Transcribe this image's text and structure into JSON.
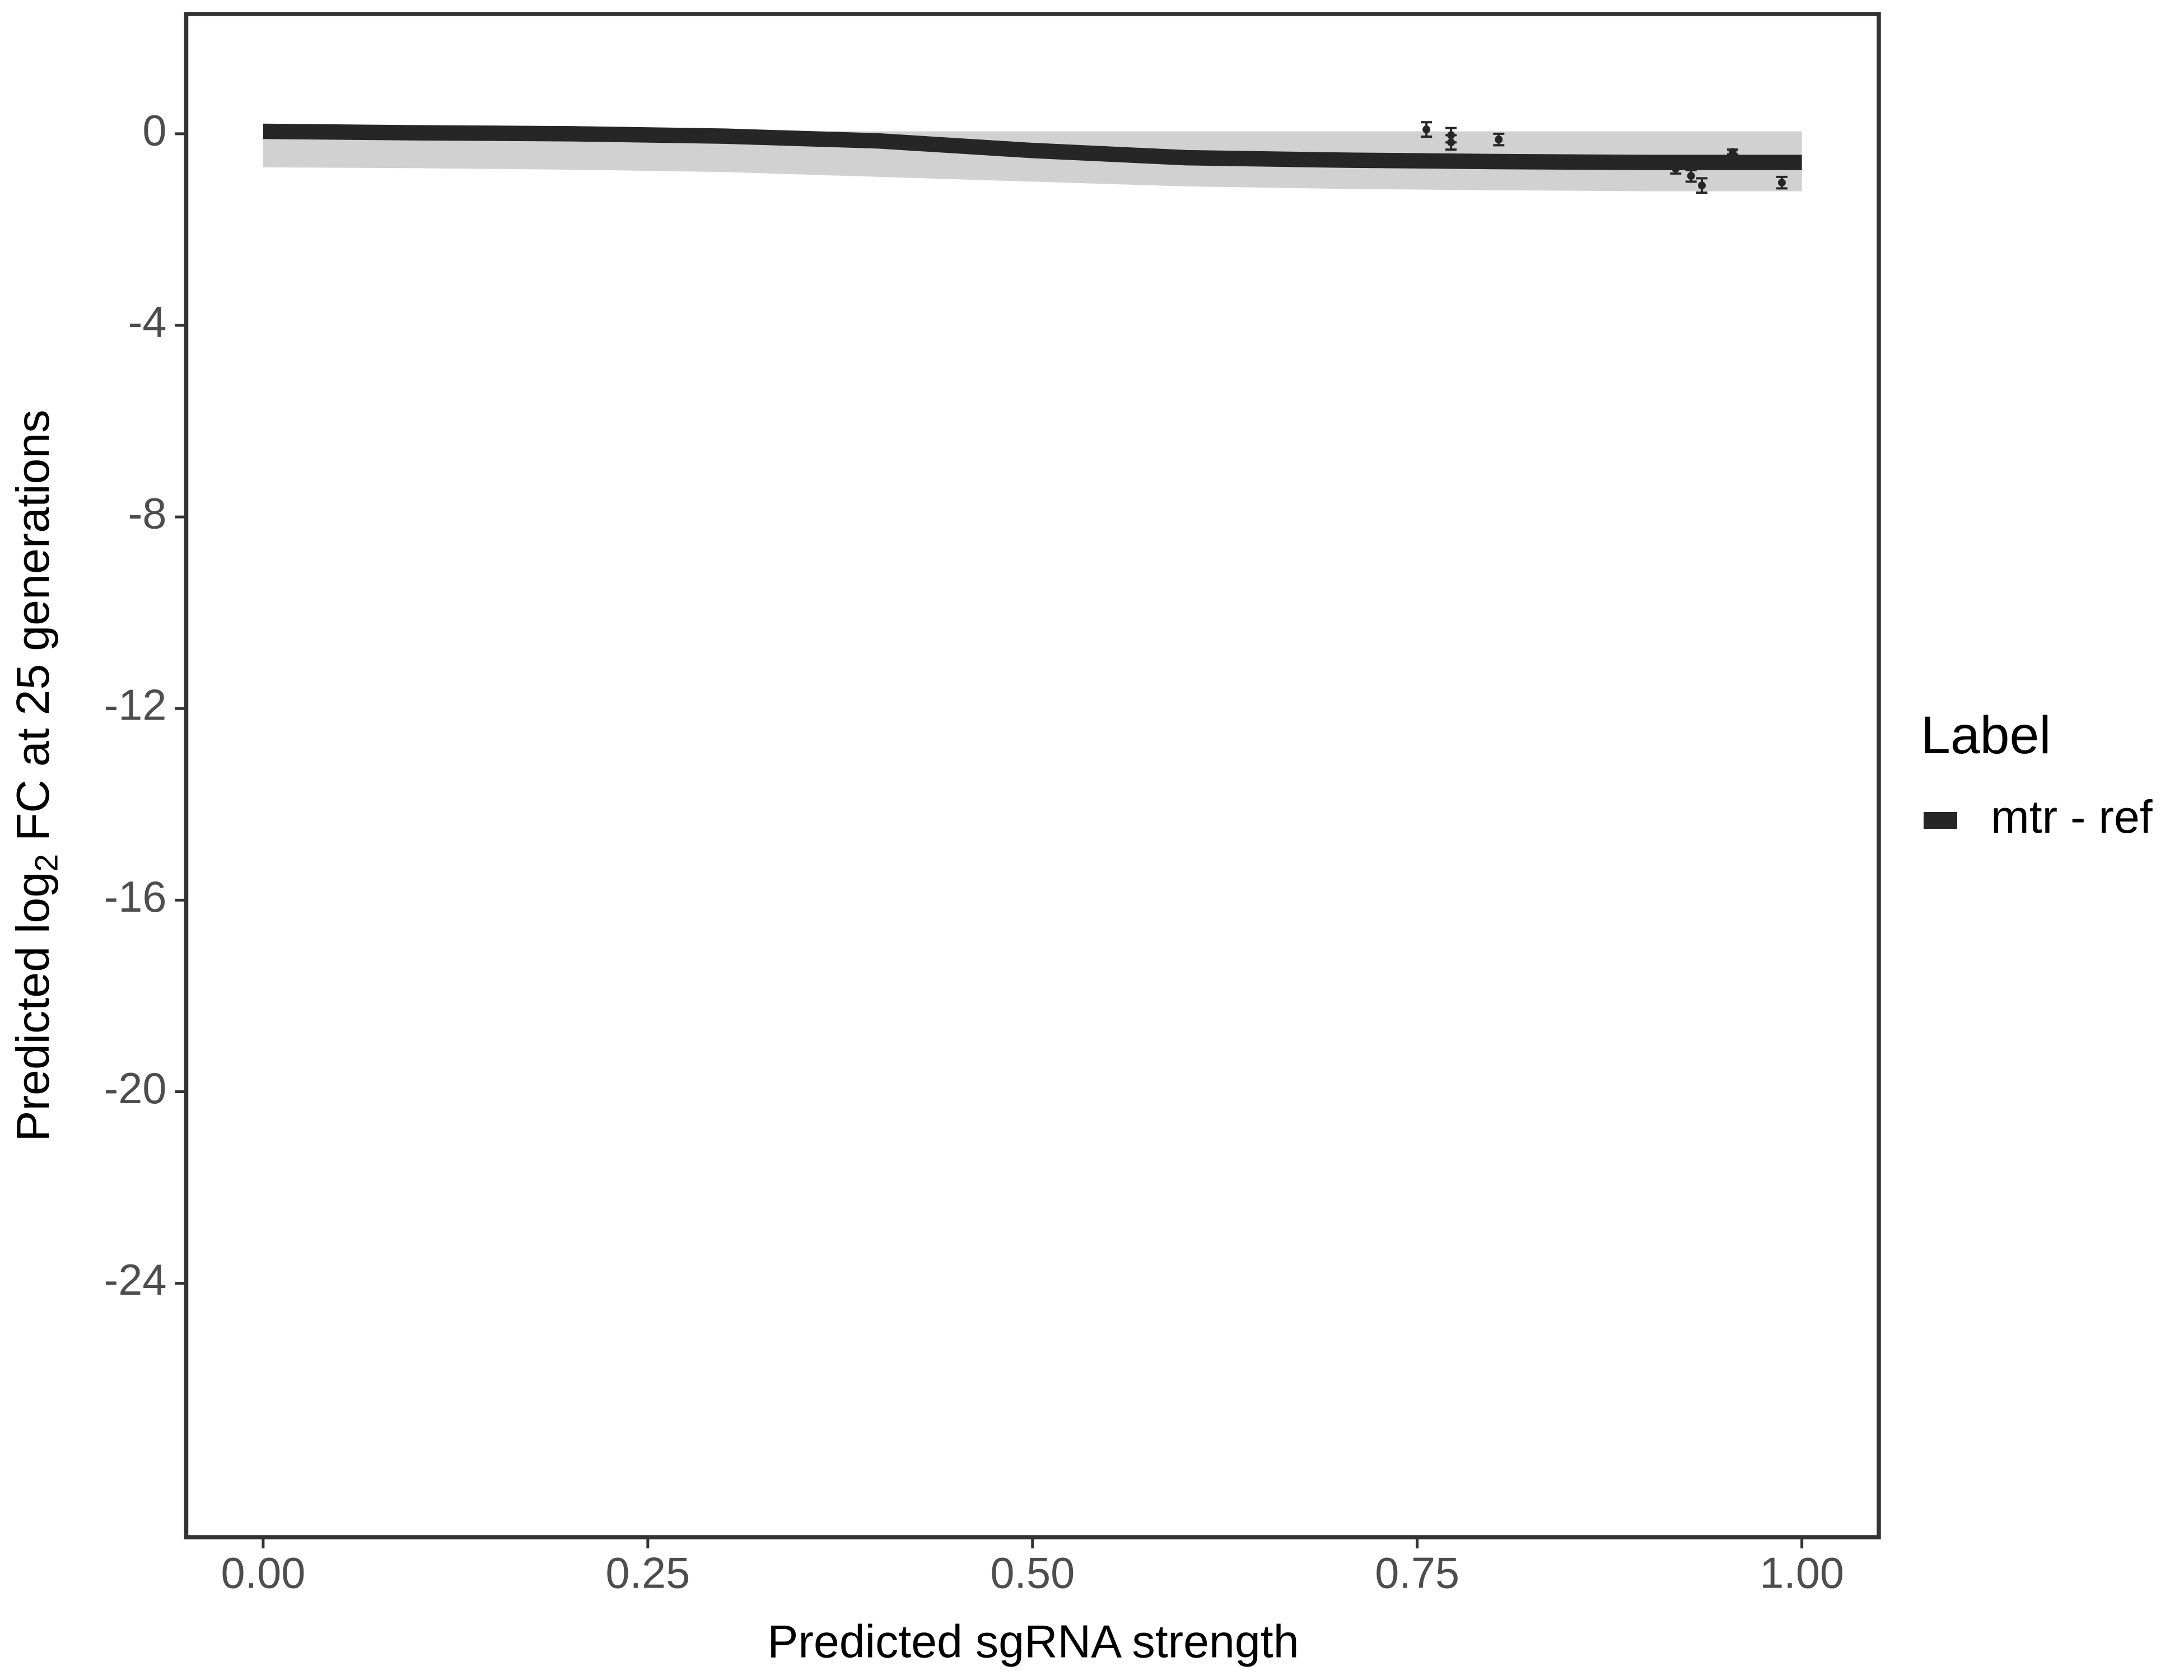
{
  "chart_data": {
    "type": "line",
    "x_label": "Predicted sgRNA strength",
    "y_label": {
      "prefix": "Predicted  log",
      "subscript": "2",
      "suffix": " FC at 25 generations"
    },
    "legend_title": "Label",
    "legend": "right",
    "x": [
      0,
      0.1,
      0.2,
      0.3,
      0.4,
      0.5,
      0.6,
      0.7,
      0.8,
      0.9,
      1.0
    ],
    "series": [
      {
        "name": "mtr - ref",
        "color": "#262626",
        "values": [
          0.05,
          0.02,
          0,
          -0.05,
          -0.15,
          -0.35,
          -0.5,
          -0.55,
          -0.58,
          -0.6,
          -0.6
        ],
        "upper": [
          0.05,
          0.05,
          0.05,
          0.05,
          0.05,
          0.05,
          0.05,
          0.05,
          0.05,
          0.05,
          0.05
        ],
        "lower": [
          -0.7,
          -0.72,
          -0.75,
          -0.8,
          -0.9,
          -1.0,
          -1.1,
          -1.15,
          -1.18,
          -1.2,
          -1.2
        ]
      }
    ],
    "points": {
      "color": "#262626",
      "x": [
        0.756,
        0.772,
        0.772,
        0.803,
        0.918,
        0.928,
        0.935,
        0.955,
        0.987
      ],
      "values": [
        0.09,
        -0.03,
        -0.18,
        -0.12,
        -0.73,
        -0.88,
        -1.08,
        -0.38,
        -1.02
      ],
      "errors": [
        0.15,
        0.15,
        0.15,
        0.12,
        0.1,
        0.12,
        0.15,
        0.05,
        0.12
      ]
    },
    "xlim": [
      -0.05,
      1.05
    ],
    "ylim": [
      -29.3,
      2.5
    ],
    "xticks": [
      {
        "value": 0,
        "label": "0.00"
      },
      0.25,
      {
        "value": 0.5,
        "label": "0.50"
      },
      0.75,
      {
        "value": 1,
        "label": "1.00"
      }
    ],
    "yticks": [
      0,
      -4,
      -8,
      -12,
      -16,
      -20,
      -24
    ],
    "grid": false
  }
}
